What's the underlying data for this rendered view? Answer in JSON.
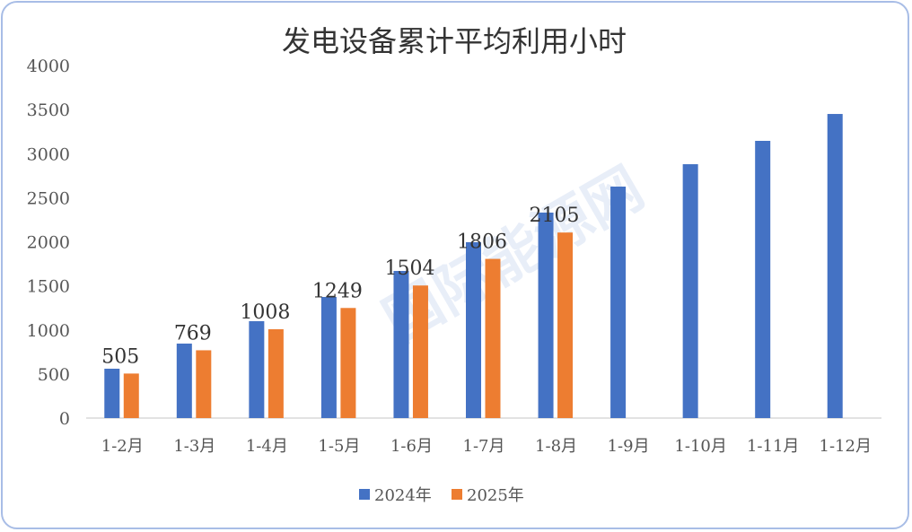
{
  "chart_data": {
    "type": "bar",
    "title": "发电设备累计平均利用小时",
    "categories": [
      "1-2月",
      "1-3月",
      "1-4月",
      "1-5月",
      "1-6月",
      "1-7月",
      "1-8月",
      "1-9月",
      "1-10月",
      "1-11月",
      "1-12月"
    ],
    "series": [
      {
        "name": "2024年",
        "color": "#4472c4",
        "values": [
          560,
          845,
          1099,
          1374,
          1669,
          1995,
          2331,
          2626,
          2880,
          3145,
          3450
        ]
      },
      {
        "name": "2025年",
        "color": "#ed7d31",
        "values": [
          505,
          769,
          1008,
          1249,
          1504,
          1806,
          2105,
          null,
          null,
          null,
          null
        ],
        "data_labels": true
      }
    ],
    "yticks": [
      0,
      500,
      1000,
      1500,
      2000,
      2500,
      3000,
      3500,
      4000
    ],
    "ylim": [
      0,
      4000
    ],
    "grid": false,
    "legend": "bottom",
    "watermark": "国际能源网"
  }
}
